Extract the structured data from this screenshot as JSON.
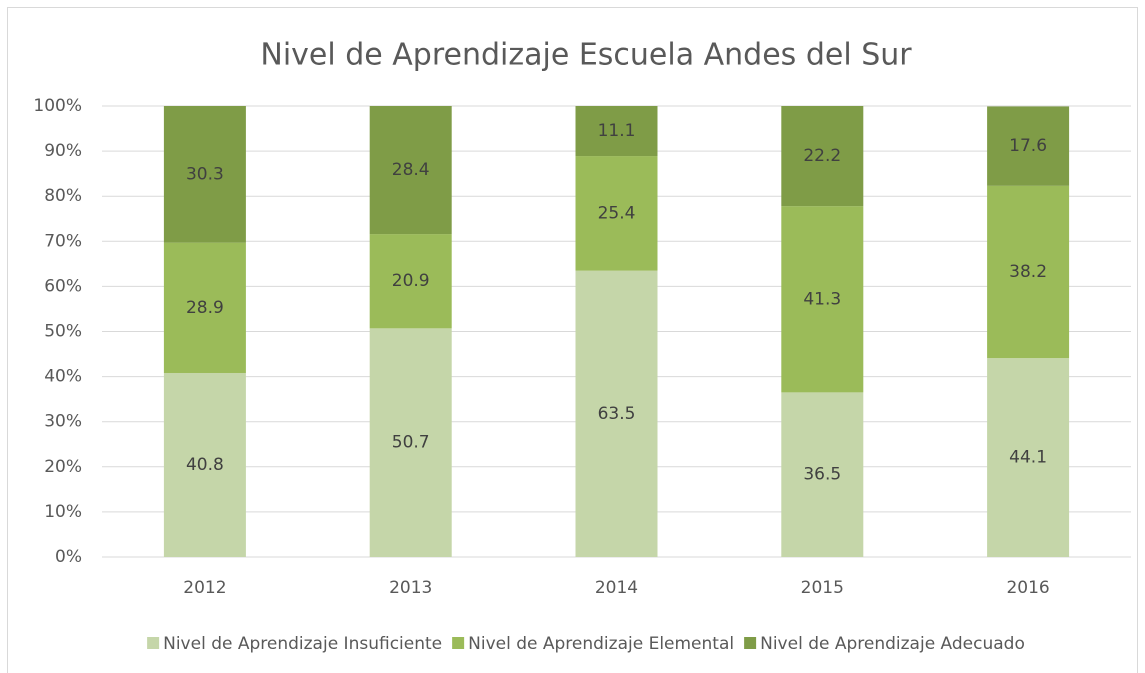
{
  "chart_data": {
    "type": "bar",
    "stacked": true,
    "title": "Nivel de Aprendizaje Escuela Andes del Sur",
    "categories": [
      "2012",
      "2013",
      "2014",
      "2015",
      "2016"
    ],
    "series": [
      {
        "name": "Nivel de Aprendizaje Insuficiente",
        "color": "#c5d6a9",
        "values": [
          40.8,
          50.7,
          63.5,
          36.5,
          44.1
        ]
      },
      {
        "name": "Nivel de Aprendizaje Elemental",
        "color": "#9bbb59",
        "values": [
          28.9,
          20.9,
          25.4,
          41.3,
          38.2
        ]
      },
      {
        "name": "Nivel de Aprendizaje Adecuado",
        "color": "#7f9c47",
        "values": [
          30.3,
          28.4,
          11.1,
          22.2,
          17.6
        ]
      }
    ],
    "ylim": [
      0,
      100
    ],
    "yticks": [
      {
        "value": 0,
        "label": "0%"
      },
      {
        "value": 10,
        "label": "10%"
      },
      {
        "value": 20,
        "label": "20%"
      },
      {
        "value": 30,
        "label": "30%"
      },
      {
        "value": 40,
        "label": "40%"
      },
      {
        "value": 50,
        "label": "50%"
      },
      {
        "value": 60,
        "label": "60%"
      },
      {
        "value": 70,
        "label": "70%"
      },
      {
        "value": 80,
        "label": "80%"
      },
      {
        "value": 90,
        "label": "90%"
      },
      {
        "value": 100,
        "label": "100%"
      }
    ],
    "grid": true,
    "legend": "bottom"
  }
}
